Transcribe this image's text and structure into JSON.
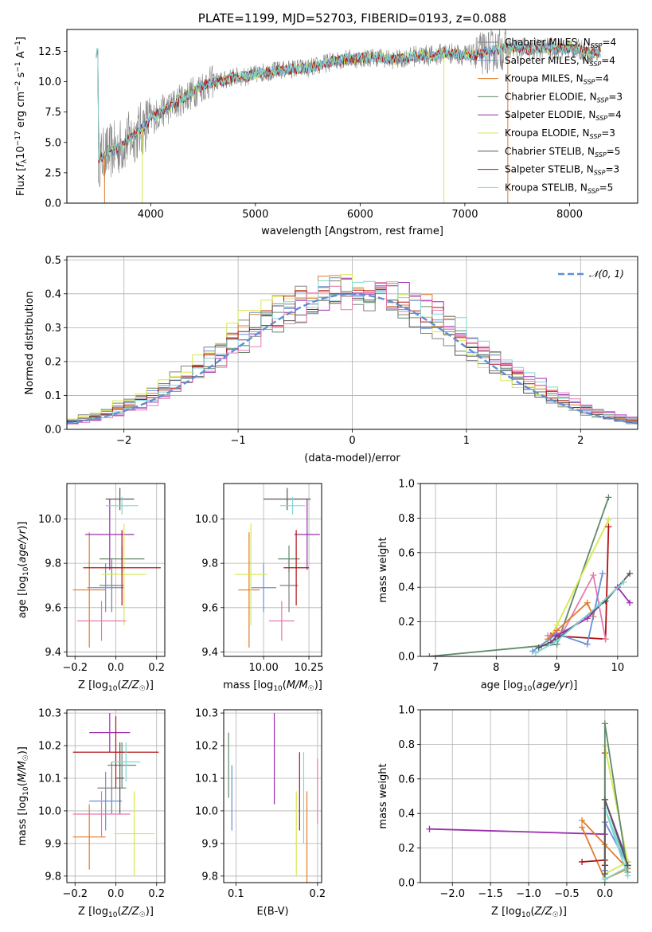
{
  "colors": {
    "Chabrier MILES": "#808080",
    "Salpeter MILES": "#6b8fd6",
    "Kroupa MILES": "#e07b2a",
    "Chabrier ELODIE": "#5f8a6a",
    "Salpeter ELODIE": "#9b2fae",
    "Kroupa ELODIE": "#d7e84f",
    "Chabrier STELIB": "#555555",
    "Salpeter STELIB": "#b01010",
    "Kroupa STELIB": "#7fd6d6",
    "extra_pink": "#e878b0",
    "normal_curve": "#5b8fd6"
  },
  "chart_data": [
    {
      "id": "spectrum",
      "type": "line",
      "title": "PLATE=1199, MJD=52703, FIBERID=0193, z=0.088",
      "xlabel": "wavelength [Angstrom, rest frame]",
      "ylabel": "Flux [f_λ 10^-17 erg cm^-2 s^-1 A^-1]",
      "xlim": [
        3200,
        8650
      ],
      "ylim": [
        0,
        14.3
      ],
      "xticks": [
        4000,
        5000,
        6000,
        7000,
        8000
      ],
      "yticks": [
        0.0,
        2.5,
        5.0,
        7.5,
        10.0,
        12.5
      ],
      "legend_position": "top-right",
      "legend": [
        {
          "base": "Chabrier MILES, N",
          "sub": "SSP",
          "suffix": "=4",
          "color_key": "Chabrier MILES"
        },
        {
          "base": "Salpeter MILES, N",
          "sub": "SSP",
          "suffix": "=4",
          "color_key": "Salpeter MILES"
        },
        {
          "base": "Kroupa MILES, N",
          "sub": "SSP",
          "suffix": "=4",
          "color_key": "Kroupa MILES"
        },
        {
          "base": "Chabrier ELODIE, N",
          "sub": "SSP",
          "suffix": "=3",
          "color_key": "Chabrier ELODIE"
        },
        {
          "base": "Salpeter ELODIE, N",
          "sub": "SSP",
          "suffix": "=4",
          "color_key": "Salpeter ELODIE"
        },
        {
          "base": "Kroupa ELODIE, N",
          "sub": "SSP",
          "suffix": "=3",
          "color_key": "Kroupa ELODIE"
        },
        {
          "base": "Chabrier STELIB, N",
          "sub": "SSP",
          "suffix": "=5",
          "color_key": "Chabrier STELIB"
        },
        {
          "base": "Salpeter STELIB, N",
          "sub": "SSP",
          "suffix": "=3",
          "color_key": "Salpeter STELIB"
        },
        {
          "base": "Kroupa STELIB, N",
          "sub": "SSP",
          "suffix": "=5",
          "color_key": "Kroupa STELIB"
        }
      ],
      "continuum": [
        [
          3500,
          3.6
        ],
        [
          3600,
          4.2
        ],
        [
          3700,
          4.6
        ],
        [
          3800,
          5.3
        ],
        [
          3900,
          6.0
        ],
        [
          4000,
          6.9
        ],
        [
          4100,
          7.5
        ],
        [
          4200,
          8.0
        ],
        [
          4300,
          8.6
        ],
        [
          4400,
          9.1
        ],
        [
          4500,
          9.7
        ],
        [
          4600,
          10.0
        ],
        [
          4700,
          10.1
        ],
        [
          4800,
          10.4
        ],
        [
          4900,
          10.4
        ],
        [
          5000,
          10.6
        ],
        [
          5100,
          10.8
        ],
        [
          5200,
          10.9
        ],
        [
          5300,
          11.0
        ],
        [
          5400,
          11.1
        ],
        [
          5500,
          11.1
        ],
        [
          5600,
          11.3
        ],
        [
          5700,
          11.6
        ],
        [
          5800,
          11.8
        ],
        [
          5900,
          11.9
        ],
        [
          6000,
          11.9
        ],
        [
          6100,
          12.0
        ],
        [
          6200,
          12.0
        ],
        [
          6300,
          11.8
        ],
        [
          6400,
          11.9
        ],
        [
          6500,
          12.1
        ],
        [
          6600,
          12.2
        ],
        [
          6700,
          12.1
        ],
        [
          6800,
          12.4
        ],
        [
          6900,
          12.3
        ],
        [
          7000,
          12.2
        ],
        [
          7100,
          12.2
        ],
        [
          7200,
          12.4
        ],
        [
          7300,
          12.6
        ],
        [
          7400,
          12.8
        ],
        [
          7500,
          12.8
        ],
        [
          7600,
          12.6
        ],
        [
          7700,
          12.7
        ],
        [
          7800,
          12.8
        ],
        [
          7900,
          12.7
        ],
        [
          8000,
          12.8
        ],
        [
          8100,
          12.6
        ],
        [
          8200,
          12.4
        ],
        [
          8300,
          12.4
        ]
      ]
    },
    {
      "id": "residuals",
      "type": "histogram",
      "xlabel": "(data-model)/error",
      "ylabel": "Normed distribution",
      "xlim": [
        -2.5,
        2.5
      ],
      "ylim": [
        0,
        0.51
      ],
      "xticks": [
        -2,
        -1,
        0,
        1,
        2
      ],
      "yticks": [
        0.0,
        0.1,
        0.2,
        0.3,
        0.4,
        0.5
      ],
      "legend_label": "𝒩(0, 1)",
      "legend_position": "top-right",
      "bin_width": 0.1,
      "bin_start": -2.5
    },
    {
      "id": "age-vs-Z",
      "type": "errorbar",
      "xlabel": "Z [log10(Z/Z☉)]",
      "ylabel": "age [log10(age/yr)]",
      "xlim": [
        -0.24,
        0.24
      ],
      "ylim": [
        9.38,
        10.16
      ],
      "xticks": [
        -0.2,
        0.0,
        0.2
      ],
      "yticks": [
        9.4,
        9.6,
        9.8,
        10.0
      ],
      "points": [
        {
          "key": "Chabrier MILES",
          "x": -0.02,
          "xerr": 0.06,
          "y": 9.7,
          "yerr": 0.12
        },
        {
          "key": "Salpeter MILES",
          "x": -0.05,
          "xerr": 0.09,
          "y": 9.69,
          "yerr": 0.11
        },
        {
          "key": "Kroupa MILES",
          "x": -0.13,
          "xerr": 0.08,
          "y": 9.68,
          "yerr": 0.26
        },
        {
          "key": "Chabrier ELODIE",
          "x": 0.03,
          "xerr": 0.11,
          "y": 9.82,
          "yerr": 0.06
        },
        {
          "key": "Salpeter ELODIE",
          "x": -0.03,
          "xerr": 0.12,
          "y": 9.93,
          "yerr": 0.16
        },
        {
          "key": "Kroupa ELODIE",
          "x": 0.04,
          "xerr": 0.11,
          "y": 9.75,
          "yerr": 0.23
        },
        {
          "key": "Chabrier STELIB",
          "x": 0.02,
          "xerr": 0.07,
          "y": 10.09,
          "yerr": 0.05
        },
        {
          "key": "Salpeter STELIB",
          "x": 0.03,
          "xerr": 0.19,
          "y": 9.78,
          "yerr": 0.17
        },
        {
          "key": "Kroupa STELIB",
          "x": 0.03,
          "xerr": 0.08,
          "y": 10.06,
          "yerr": 0.04
        },
        {
          "key": "extra_pink",
          "x": -0.07,
          "xerr": 0.12,
          "y": 9.54,
          "yerr": 0.09
        }
      ]
    },
    {
      "id": "age-vs-mass",
      "type": "errorbar",
      "xlabel": "mass [log10(M/M☉)]",
      "ylabel": "",
      "xlim": [
        9.78,
        10.32
      ],
      "ylim": [
        9.38,
        10.16
      ],
      "xticks": [
        10.0,
        10.25
      ],
      "yticks": [
        9.4,
        9.6,
        9.8,
        10.0
      ],
      "points": [
        {
          "key": "Chabrier MILES",
          "x": 10.14,
          "xerr": 0.05,
          "y": 9.7,
          "yerr": 0.12
        },
        {
          "key": "Salpeter MILES",
          "x": 10.0,
          "xerr": 0.07,
          "y": 9.69,
          "yerr": 0.11
        },
        {
          "key": "Kroupa MILES",
          "x": 9.92,
          "xerr": 0.06,
          "y": 9.68,
          "yerr": 0.26
        },
        {
          "key": "Chabrier ELODIE",
          "x": 10.14,
          "xerr": 0.06,
          "y": 9.82,
          "yerr": 0.06
        },
        {
          "key": "Salpeter ELODIE",
          "x": 10.24,
          "xerr": 0.07,
          "y": 9.93,
          "yerr": 0.16
        },
        {
          "key": "Kroupa ELODIE",
          "x": 9.93,
          "xerr": 0.09,
          "y": 9.75,
          "yerr": 0.23
        },
        {
          "key": "Chabrier STELIB",
          "x": 10.13,
          "xerr": 0.13,
          "y": 10.09,
          "yerr": 0.05
        },
        {
          "key": "Salpeter STELIB",
          "x": 10.18,
          "xerr": 0.07,
          "y": 9.78,
          "yerr": 0.17
        },
        {
          "key": "Kroupa STELIB",
          "x": 10.16,
          "xerr": 0.07,
          "y": 10.06,
          "yerr": 0.04
        },
        {
          "key": "extra_pink",
          "x": 10.1,
          "xerr": 0.07,
          "y": 9.54,
          "yerr": 0.09
        }
      ]
    },
    {
      "id": "mass-weight-vs-age",
      "type": "line",
      "xlabel": "age  [log10(age/yr)]",
      "ylabel": "mass weight",
      "xlim": [
        6.75,
        10.33
      ],
      "ylim": [
        0,
        1.0
      ],
      "xticks": [
        7,
        8,
        9,
        10
      ],
      "yticks": [
        0.0,
        0.2,
        0.4,
        0.6,
        0.8,
        1.0
      ],
      "series": [
        {
          "key": "Chabrier ELODIE",
          "x": [
            6.9,
            9.0,
            9.85
          ],
          "y": [
            0.0,
            0.07,
            0.92
          ]
        },
        {
          "key": "Kroupa ELODIE",
          "x": [
            8.85,
            9.0,
            9.85
          ],
          "y": [
            0.09,
            0.18,
            0.79
          ]
        },
        {
          "key": "Salpeter STELIB",
          "x": [
            8.9,
            9.8,
            9.85
          ],
          "y": [
            0.12,
            0.1,
            0.75
          ]
        },
        {
          "key": "extra_pink",
          "x": [
            8.85,
            9.1,
            9.6,
            9.8
          ],
          "y": [
            0.12,
            0.14,
            0.47,
            0.1
          ]
        },
        {
          "key": "Kroupa MILES",
          "x": [
            8.85,
            9.0,
            9.5,
            9.6
          ],
          "y": [
            0.1,
            0.15,
            0.31,
            0.23
          ]
        },
        {
          "key": "Salpeter MILES",
          "x": [
            8.6,
            9.0,
            9.5,
            9.75
          ],
          "y": [
            0.03,
            0.13,
            0.07,
            0.48
          ]
        },
        {
          "key": "Salpeter ELODIE",
          "x": [
            8.9,
            9.0,
            9.5,
            10.0,
            10.2
          ],
          "y": [
            0.08,
            0.12,
            0.22,
            0.4,
            0.31
          ]
        },
        {
          "key": "Chabrier STELIB",
          "x": [
            8.7,
            9.0,
            9.8,
            10.2
          ],
          "y": [
            0.05,
            0.1,
            0.32,
            0.48
          ]
        },
        {
          "key": "Kroupa STELIB",
          "x": [
            8.65,
            9.0,
            9.7,
            10.1
          ],
          "y": [
            0.02,
            0.09,
            0.3,
            0.43
          ]
        }
      ]
    },
    {
      "id": "mass-vs-Z",
      "type": "errorbar",
      "xlabel": "Z [log10(Z/Z☉)]",
      "ylabel": "mass [log10(M/M☉)]",
      "xlim": [
        -0.24,
        0.24
      ],
      "ylim": [
        9.78,
        10.31
      ],
      "xticks": [
        -0.2,
        0.0,
        0.2
      ],
      "yticks": [
        9.8,
        9.9,
        10.0,
        10.1,
        10.2,
        10.3
      ],
      "points": [
        {
          "key": "Chabrier MILES",
          "x": -0.02,
          "xerr": 0.07,
          "y": 10.07,
          "yerr": 0.08
        },
        {
          "key": "Salpeter MILES",
          "x": -0.05,
          "xerr": 0.08,
          "y": 10.03,
          "yerr": 0.09
        },
        {
          "key": "Kroupa MILES",
          "x": -0.13,
          "xerr": 0.08,
          "y": 9.92,
          "yerr": 0.1
        },
        {
          "key": "Chabrier ELODIE",
          "x": 0.03,
          "xerr": 0.07,
          "y": 10.14,
          "yerr": 0.07
        },
        {
          "key": "Salpeter ELODIE",
          "x": -0.03,
          "xerr": 0.1,
          "y": 10.24,
          "yerr": 0.06
        },
        {
          "key": "Kroupa ELODIE",
          "x": 0.09,
          "xerr": 0.1,
          "y": 9.93,
          "yerr": 0.13
        },
        {
          "key": "Chabrier STELIB",
          "x": 0.02,
          "xerr": 0.02,
          "y": 10.1,
          "yerr": 0.11
        },
        {
          "key": "Salpeter STELIB",
          "x": 0.0,
          "xerr": 0.21,
          "y": 10.18,
          "yerr": 0.11
        },
        {
          "key": "Kroupa STELIB",
          "x": 0.05,
          "xerr": 0.07,
          "y": 10.15,
          "yerr": 0.06
        },
        {
          "key": "extra_pink",
          "x": -0.07,
          "xerr": 0.14,
          "y": 9.99,
          "yerr": 0.07
        }
      ]
    },
    {
      "id": "mass-vs-ebv",
      "type": "errorbar",
      "xlabel": "E(B-V)",
      "ylabel": "",
      "xlim": [
        0.085,
        0.205
      ],
      "ylim": [
        9.78,
        10.31
      ],
      "xticks": [
        0.1,
        0.2
      ],
      "yticks": [
        9.8,
        9.9,
        10.0,
        10.1,
        10.2,
        10.3
      ],
      "points": [
        {
          "key": "Chabrier ELODIE",
          "x": 0.091,
          "xerr": 0,
          "y": 10.14,
          "yerr": 0.1
        },
        {
          "key": "Salpeter MILES",
          "x": 0.095,
          "xerr": 0,
          "y": 10.04,
          "yerr": 0.1
        },
        {
          "key": "Salpeter ELODIE",
          "x": 0.147,
          "xerr": 0,
          "y": 10.16,
          "yerr": 0.14
        },
        {
          "key": "Kroupa ELODIE",
          "x": 0.174,
          "xerr": 0,
          "y": 9.93,
          "yerr": 0.13
        },
        {
          "key": "Salpeter STELIB",
          "x": 0.178,
          "xerr": 0,
          "y": 10.06,
          "yerr": 0.12
        },
        {
          "key": "Kroupa STELIB",
          "x": 0.183,
          "xerr": 0,
          "y": 10.04,
          "yerr": 0.14
        },
        {
          "key": "Kroupa MILES",
          "x": 0.187,
          "xerr": 0,
          "y": 9.92,
          "yerr": 0.14
        },
        {
          "key": "extra_pink",
          "x": 0.2,
          "xerr": 0,
          "y": 10.06,
          "yerr": 0.1
        }
      ]
    },
    {
      "id": "mass-weight-vs-Z",
      "type": "line",
      "xlabel": "Z [log10(Z/Z☉)]",
      "ylabel": "mass weight",
      "xlim": [
        -2.42,
        0.43
      ],
      "ylim": [
        0,
        1.0
      ],
      "xticks": [
        -2.0,
        -1.5,
        -1.0,
        -0.5,
        0.0
      ],
      "yticks": [
        0.0,
        0.2,
        0.4,
        0.6,
        0.8,
        1.0
      ],
      "series": [
        {
          "key": "Salpeter ELODIE",
          "x": [
            -2.3,
            0.0,
            0.0,
            0.3
          ],
          "y": [
            0.31,
            0.28,
            0.48,
            0.12
          ]
        },
        {
          "key": "Kroupa MILES",
          "x": [
            -0.3,
            0.0,
            0.3,
            0.0,
            -0.3
          ],
          "y": [
            0.36,
            0.22,
            0.08,
            0.02,
            0.32
          ]
        },
        {
          "key": "Salpeter STELIB",
          "x": [
            -0.3,
            0.0,
            0.0,
            0.0
          ],
          "y": [
            0.12,
            0.13,
            0.75,
            0.1
          ]
        },
        {
          "key": "Kroupa ELODIE",
          "x": [
            0.0,
            0.0,
            0.3,
            0.0
          ],
          "y": [
            0.03,
            0.79,
            0.12,
            0.05
          ]
        },
        {
          "key": "Chabrier ELODIE",
          "x": [
            0.0,
            0.0,
            0.3
          ],
          "y": [
            0.0,
            0.92,
            0.06
          ]
        },
        {
          "key": "Salpeter MILES",
          "x": [
            0.0,
            0.0,
            0.3,
            0.0
          ],
          "y": [
            0.07,
            0.35,
            0.1,
            0.48
          ]
        },
        {
          "key": "Kroupa STELIB",
          "x": [
            0.0,
            0.3,
            0.0,
            0.3
          ],
          "y": [
            0.02,
            0.09,
            0.43,
            0.04
          ]
        },
        {
          "key": "Chabrier STELIB",
          "x": [
            0.0,
            0.0,
            0.3
          ],
          "y": [
            0.05,
            0.48,
            0.1
          ]
        }
      ]
    }
  ]
}
